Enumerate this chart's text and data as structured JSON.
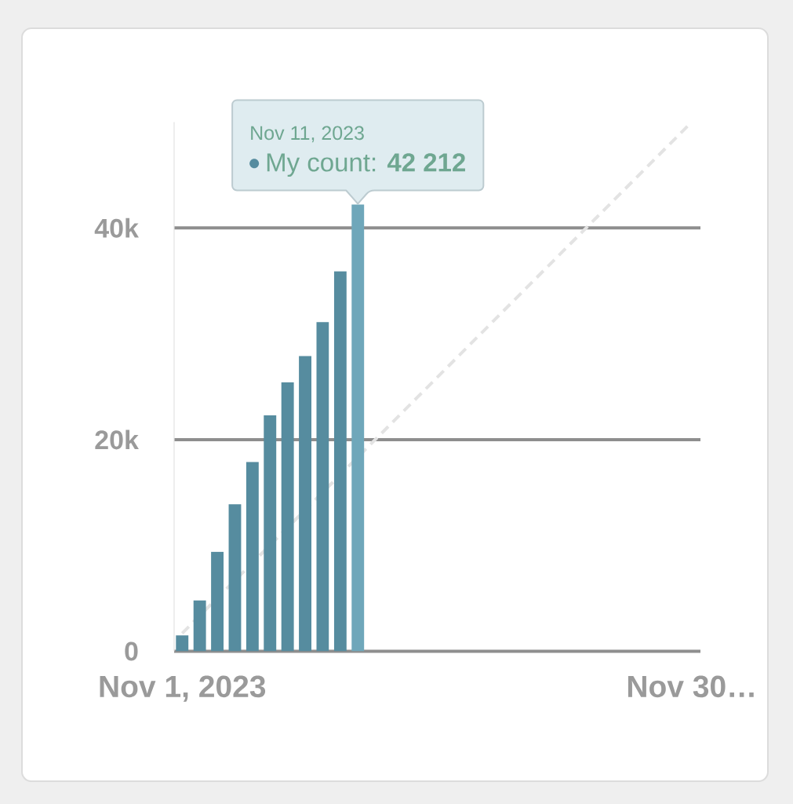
{
  "chart_data": {
    "type": "bar",
    "x": [
      "2023-11-01",
      "2023-11-02",
      "2023-11-03",
      "2023-11-04",
      "2023-11-05",
      "2023-11-06",
      "2023-11-07",
      "2023-11-08",
      "2023-11-09",
      "2023-11-10",
      "2023-11-11"
    ],
    "series": [
      {
        "values": [
          1500,
          4800,
          9400,
          13900,
          17900,
          22300,
          25400,
          27900,
          31100,
          35900,
          42212
        ],
        "colors": [
          "#568c9f",
          "#568c9f",
          "#568c9f",
          "#568c9f",
          "#568c9f",
          "#568c9f",
          "#568c9f",
          "#568c9f",
          "#568c9f",
          "#568c9f",
          "#6fa7ba"
        ]
      },
      {
        "type": "line",
        "x": [
          "2023-11-01",
          "2023-11-30"
        ],
        "values": [
          1700,
          50000
        ],
        "color": "#e3e3e3",
        "line_style": "dashed"
      }
    ],
    "xlim": [
      "2023-10-31T13:00",
      "2023-11-30T12:00"
    ],
    "xticks": [
      {
        "value": "2023-11-01",
        "label": "Nov 1, 2023"
      },
      {
        "value": "2023-11-30",
        "label": "Nov 30…"
      }
    ],
    "ylim": [
      0,
      50000
    ],
    "yticks": [
      0,
      {
        "value": 20000,
        "label": "20k"
      },
      {
        "value": 40000,
        "label": "40k"
      }
    ],
    "grid": "y",
    "annotations": [
      "Nov 11, 2023",
      {
        "text": "My count: **42 212**",
        "x": "2023-11-11",
        "y": 42212
      }
    ]
  }
}
